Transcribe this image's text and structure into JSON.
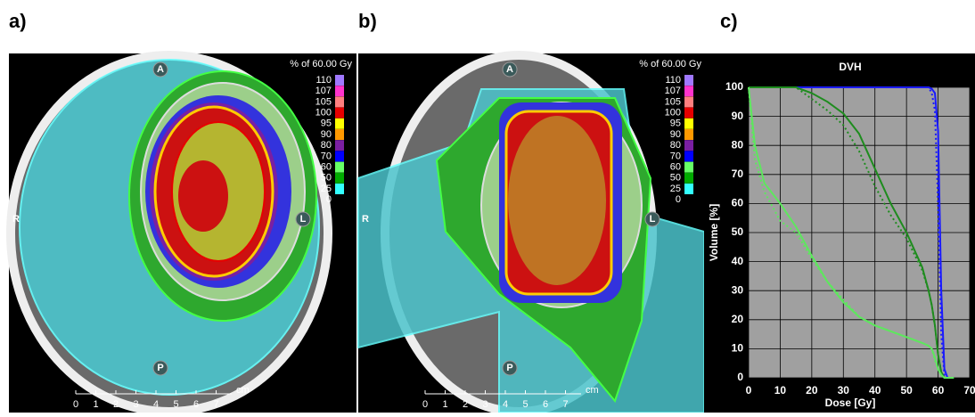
{
  "panel_labels": [
    "a)",
    "b)",
    "c)"
  ],
  "orientation": [
    "A",
    "P",
    "R",
    "L"
  ],
  "scale": {
    "unit": "cm",
    "ticks": [
      0,
      1,
      2,
      3,
      4,
      5,
      6,
      7
    ]
  },
  "dose_legend": {
    "title": "% of 60.00 Gy",
    "levels": [
      110,
      107,
      105,
      100,
      95,
      90,
      80,
      70,
      60,
      50,
      25,
      0
    ],
    "colors": [
      "#a078ff",
      "#ff33cc",
      "#ff7f7f",
      "#e60000",
      "#ffff00",
      "#ff9900",
      "#7a1fa2",
      "#0000ff",
      "#66ff66",
      "#00aa00",
      "#33ffff",
      "#000000"
    ]
  },
  "chart_data": {
    "type": "line",
    "title": "DVH",
    "xlabel": "Dose [Gy]",
    "ylabel": "Volume [%]",
    "x": [
      0,
      2,
      5,
      10,
      15,
      20,
      25,
      30,
      35,
      40,
      45,
      50,
      55,
      57,
      58,
      59,
      60,
      61,
      62,
      63,
      65
    ],
    "series": [
      {
        "color": "#1a1aff",
        "style": "solid",
        "values": [
          100,
          100,
          100,
          100,
          100,
          100,
          100,
          100,
          100,
          100,
          100,
          100,
          100,
          100,
          99.5,
          98,
          85,
          30,
          3,
          0,
          0
        ]
      },
      {
        "color": "#1a1aff",
        "style": "dotted",
        "values": [
          100,
          100,
          100,
          100,
          100,
          100,
          100,
          100,
          100,
          100,
          100,
          100,
          100,
          100,
          98,
          92,
          60,
          15,
          1,
          0,
          0
        ]
      },
      {
        "color": "#1e8c1e",
        "style": "solid",
        "values": [
          100,
          100,
          100,
          100,
          100,
          98,
          95,
          91,
          84,
          72,
          60,
          50,
          38,
          30,
          25,
          18,
          8,
          2,
          0,
          0,
          0
        ]
      },
      {
        "color": "#1e8c1e",
        "style": "dotted",
        "values": [
          100,
          100,
          100,
          100,
          100,
          96,
          92,
          87,
          78,
          66,
          56,
          48,
          37,
          30,
          25,
          18,
          8,
          2,
          0,
          0,
          0
        ]
      },
      {
        "color": "#5de85d",
        "style": "solid",
        "values": [
          100,
          80,
          67,
          60,
          52,
          42,
          33,
          26,
          21,
          18,
          16,
          14,
          12,
          11,
          10,
          7,
          3,
          1,
          0,
          0,
          0
        ]
      },
      {
        "color": "#5de85d",
        "style": "dotted",
        "values": [
          100,
          75,
          64,
          54,
          50,
          41,
          33,
          27,
          21,
          18,
          16,
          14,
          12,
          11,
          10,
          6,
          3,
          1,
          0,
          0,
          0
        ]
      }
    ],
    "xlim": [
      0,
      70
    ],
    "xticks": [
      0,
      10,
      20,
      30,
      40,
      50,
      60,
      70
    ],
    "ylim": [
      0,
      100
    ],
    "yticks": [
      0,
      10,
      20,
      30,
      40,
      50,
      60,
      70,
      80,
      90,
      100
    ],
    "grid": true,
    "background": "#a0a0a0"
  }
}
